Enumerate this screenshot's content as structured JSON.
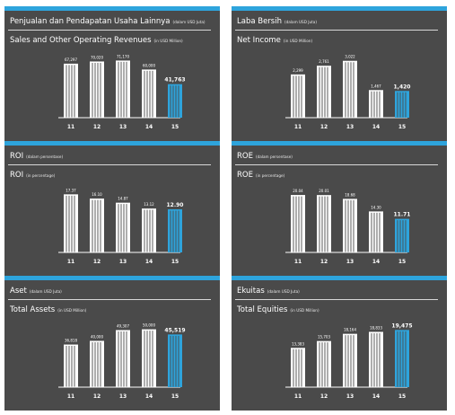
{
  "colors": {
    "panel_bg": "#4a4a4a",
    "accent": "#2ea4dc",
    "bar": "#ffffff",
    "highlight": "#2ea4dc"
  },
  "chart_data": [
    {
      "type": "bar",
      "title_id": "Penjualan dan Pendapatan Usaha Lainnya",
      "unit_id": "(dalam USD Juta)",
      "title_en": "Sales and Other Operating Revenues",
      "unit_en": "(in USD Million)",
      "categories": [
        "11",
        "12",
        "13",
        "14",
        "15"
      ],
      "values": [
        67297,
        70020,
        71170,
        60000,
        41763
      ],
      "labels": [
        "67,297",
        "70,020",
        "71,170",
        "60,000",
        "41,763"
      ],
      "highlight_index": 4,
      "ylim": [
        0,
        75000
      ]
    },
    {
      "type": "bar",
      "title_id": "Laba Bersih",
      "unit_id": "(dalam USD Juta)",
      "title_en": "Net Income",
      "unit_en": "(in USD Million)",
      "categories": [
        "11",
        "12",
        "13",
        "14",
        "15"
      ],
      "values": [
        2299,
        2761,
        3022,
        1467,
        1420
      ],
      "labels": [
        "2,299",
        "2,761",
        "3,022",
        "1,467",
        "1,420"
      ],
      "highlight_index": 4,
      "ylim": [
        0,
        3200
      ]
    },
    {
      "type": "bar",
      "title_id": "ROI",
      "unit_id": "(dalam persentase)",
      "title_en": "ROI",
      "unit_en": "(in percentage)",
      "categories": [
        "11",
        "12",
        "13",
        "14",
        "15"
      ],
      "values": [
        17.37,
        16.1,
        14.87,
        13.12,
        12.9
      ],
      "labels": [
        "17.37",
        "16.10",
        "14.87",
        "13.12",
        "12.90"
      ],
      "highlight_index": 4,
      "ylim": [
        0,
        18
      ]
    },
    {
      "type": "bar",
      "title_id": "ROE",
      "unit_id": "(dalam persentase)",
      "title_en": "ROE",
      "unit_en": "(in percentage)",
      "categories": [
        "11",
        "12",
        "13",
        "14",
        "15"
      ],
      "values": [
        20.04,
        20.01,
        18.68,
        14.3,
        11.71
      ],
      "labels": [
        "20.04",
        "20.01",
        "18.68",
        "14.30",
        "11.71"
      ],
      "highlight_index": 4,
      "ylim": [
        0,
        21
      ]
    },
    {
      "type": "bar",
      "title_id": "Aset",
      "unit_id": "(dalam USD Juta)",
      "title_en": "Total Assets",
      "unit_en": "(in USD Million)",
      "categories": [
        "11",
        "12",
        "13",
        "14",
        "15"
      ],
      "values": [
        36818,
        40000,
        49307,
        50000,
        45519
      ],
      "labels": [
        "36,818",
        "40,000",
        "49,307",
        "50,000",
        "45,519"
      ],
      "highlight_index": 4,
      "ylim": [
        0,
        52000
      ]
    },
    {
      "type": "bar",
      "title_id": "Ekuitas",
      "unit_id": "(dalam USD Juta)",
      "title_en": "Total Equities",
      "unit_en": "(in USD Million)",
      "categories": [
        "11",
        "12",
        "13",
        "14",
        "15"
      ],
      "values": [
        13383,
        15703,
        18164,
        18833,
        19475
      ],
      "labels": [
        "13,383",
        "15,703",
        "18,164",
        "18,833",
        "19,475"
      ],
      "highlight_index": 4,
      "ylim": [
        0,
        20500
      ]
    }
  ]
}
